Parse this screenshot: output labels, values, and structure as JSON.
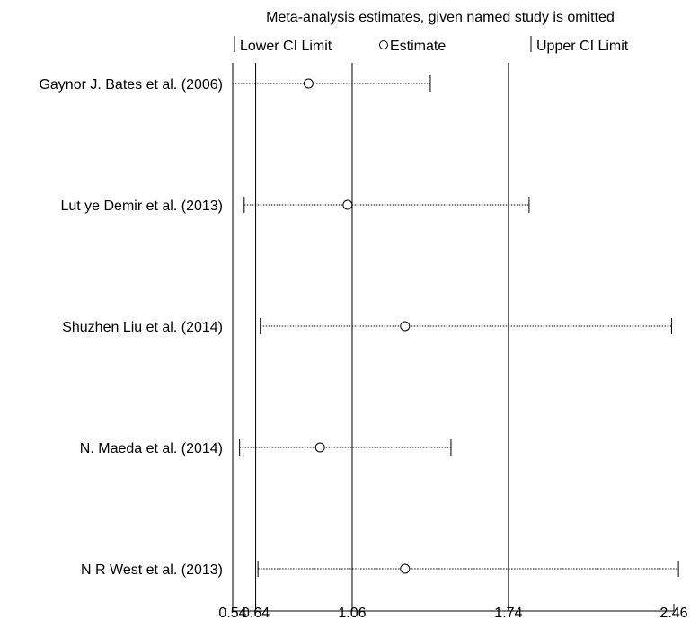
{
  "chart_data": {
    "type": "forest",
    "title": "Meta-analysis estimates, given named study is omitted",
    "legend": {
      "lower": "Lower CI Limit",
      "estimate": "Estimate",
      "upper": "Upper CI Limit"
    },
    "xlim": [
      0.54,
      2.46
    ],
    "ticks": [
      {
        "value": 0.54,
        "label": "0.54"
      },
      {
        "value": 0.64,
        "label": "0.64"
      },
      {
        "value": 1.06,
        "label": "1.06"
      },
      {
        "value": 1.74,
        "label": "1.74"
      },
      {
        "value": 2.46,
        "label": "2.46"
      }
    ],
    "reference_lines": [
      0.54,
      0.64,
      1.06,
      1.74
    ],
    "studies": [
      {
        "label": "Gaynor J. Bates et al. (2006)",
        "lower": 0.54,
        "estimate": 0.87,
        "upper": 1.4
      },
      {
        "label": "Lut ye Demir et al. (2013)",
        "lower": 0.59,
        "estimate": 1.04,
        "upper": 1.83
      },
      {
        "label": "Shuzhen Liu et al. (2014)",
        "lower": 0.66,
        "estimate": 1.29,
        "upper": 2.45
      },
      {
        "label": "N. Maeda et al. (2014)",
        "lower": 0.57,
        "estimate": 0.92,
        "upper": 1.49
      },
      {
        "label": "N R West et al. (2013)",
        "lower": 0.65,
        "estimate": 1.29,
        "upper": 2.48
      }
    ]
  }
}
